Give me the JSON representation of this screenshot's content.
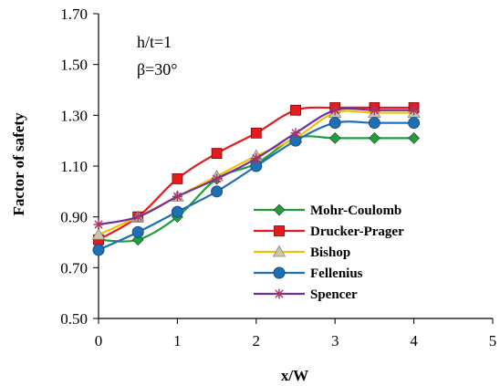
{
  "chart_data": {
    "type": "line",
    "title": "",
    "xlabel": "x/W",
    "ylabel": "Factor of safety",
    "xlim": [
      0,
      5
    ],
    "ylim": [
      0.5,
      1.7
    ],
    "xticks": [
      0,
      1,
      2,
      3,
      4,
      5
    ],
    "xtick_labels": [
      "0",
      "1",
      "2",
      "3",
      "4",
      "5"
    ],
    "yticks": [
      0.5,
      0.7,
      0.9,
      1.1,
      1.3,
      1.5,
      1.7
    ],
    "ytick_labels": [
      "0.50",
      "0.70",
      "0.90",
      "1.10",
      "1.30",
      "1.50",
      "1.70"
    ],
    "grid": false,
    "legend_position": "bottom-right",
    "annotations": [
      "h/t=1",
      "β=30°"
    ],
    "x": [
      0,
      0.5,
      1,
      1.5,
      2,
      2.5,
      3,
      3.5,
      4
    ],
    "series": [
      {
        "name": "Mohr-Coulomb",
        "color": "#1e9e3c",
        "marker": "diamond",
        "values": [
          0.81,
          0.81,
          0.9,
          1.05,
          1.11,
          1.21,
          1.21,
          1.21,
          1.21
        ]
      },
      {
        "name": "Drucker-Prager",
        "color": "#e41a1c",
        "marker": "square",
        "values": [
          0.81,
          0.9,
          1.05,
          1.15,
          1.23,
          1.32,
          1.33,
          1.33,
          1.33
        ]
      },
      {
        "name": "Bishop",
        "color": "#f5c000",
        "marker": "triangle",
        "values": [
          0.83,
          0.9,
          0.98,
          1.06,
          1.14,
          1.21,
          1.31,
          1.31,
          1.31
        ]
      },
      {
        "name": "Fellenius",
        "color": "#1f6fb4",
        "marker": "circle",
        "values": [
          0.77,
          0.84,
          0.92,
          1.0,
          1.1,
          1.2,
          1.27,
          1.27,
          1.27
        ]
      },
      {
        "name": "Spencer",
        "color": "#7030a0",
        "marker": "asterisk",
        "values": [
          0.87,
          0.9,
          0.98,
          1.05,
          1.13,
          1.23,
          1.32,
          1.32,
          1.32
        ]
      }
    ]
  }
}
